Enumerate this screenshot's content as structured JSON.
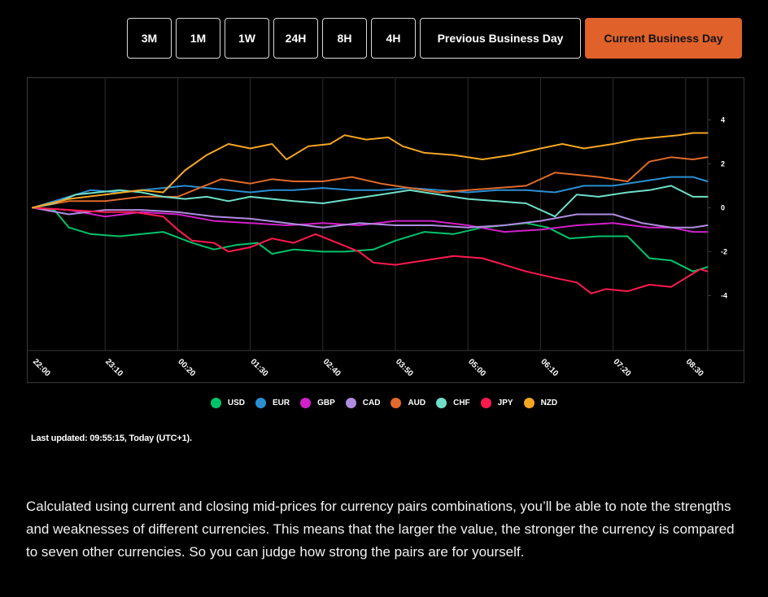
{
  "timeframes": [
    {
      "label": "3M",
      "active": false
    },
    {
      "label": "1M",
      "active": false
    },
    {
      "label": "1W",
      "active": false
    },
    {
      "label": "24H",
      "active": false
    },
    {
      "label": "8H",
      "active": false
    },
    {
      "label": "4H",
      "active": false
    },
    {
      "label": "Previous Business Day",
      "active": false
    },
    {
      "label": "Current Business Day",
      "active": true
    }
  ],
  "last_updated": "Last updated: 09:55:15, Today (UTC+1).",
  "description": "Calculated using current and closing mid-prices for currency pairs combinations, you’ll be able to note the strengths and weaknesses of different currencies. This means that the larger the value, the stronger the currency is compared to seven other currencies. So you can judge how strong the pairs are for yourself.",
  "chart_data": {
    "type": "line",
    "x_ticks": [
      "22:00",
      "23:10",
      "00:20",
      "01:30",
      "02:40",
      "03:50",
      "05:00",
      "06:10",
      "07:20",
      "08:30"
    ],
    "x_range": [
      0,
      9.4
    ],
    "ylim": [
      -6.5,
      5.9
    ],
    "y_ticks": [
      4,
      2,
      0,
      -2,
      -4
    ],
    "y_axis_side": "right",
    "grid": true,
    "legend_position": "bottom",
    "series": [
      {
        "name": "USD",
        "color": "#00c46b",
        "points": [
          [
            0,
            0
          ],
          [
            0.3,
            -0.1
          ],
          [
            0.5,
            -0.9
          ],
          [
            0.8,
            -1.2
          ],
          [
            1.2,
            -1.3
          ],
          [
            1.5,
            -1.2
          ],
          [
            1.8,
            -1.1
          ],
          [
            2.2,
            -1.6
          ],
          [
            2.5,
            -1.9
          ],
          [
            2.8,
            -1.7
          ],
          [
            3.1,
            -1.6
          ],
          [
            3.3,
            -2.1
          ],
          [
            3.6,
            -1.9
          ],
          [
            4.0,
            -2.0
          ],
          [
            4.3,
            -2.0
          ],
          [
            4.7,
            -1.9
          ],
          [
            5.0,
            -1.5
          ],
          [
            5.4,
            -1.1
          ],
          [
            5.8,
            -1.2
          ],
          [
            6.2,
            -0.9
          ],
          [
            6.5,
            -0.8
          ],
          [
            6.8,
            -0.7
          ],
          [
            7.1,
            -0.9
          ],
          [
            7.4,
            -1.4
          ],
          [
            7.8,
            -1.3
          ],
          [
            8.2,
            -1.3
          ],
          [
            8.5,
            -2.3
          ],
          [
            8.8,
            -2.4
          ],
          [
            9.1,
            -2.9
          ],
          [
            9.3,
            -2.7
          ]
        ]
      },
      {
        "name": "EUR",
        "color": "#2b8fd1",
        "points": [
          [
            0,
            0
          ],
          [
            0.4,
            0.4
          ],
          [
            0.8,
            0.8
          ],
          [
            1.2,
            0.7
          ],
          [
            1.5,
            0.8
          ],
          [
            1.8,
            0.9
          ],
          [
            2.1,
            1.0
          ],
          [
            2.4,
            0.9
          ],
          [
            2.7,
            0.8
          ],
          [
            3.0,
            0.7
          ],
          [
            3.3,
            0.8
          ],
          [
            3.6,
            0.8
          ],
          [
            4.0,
            0.9
          ],
          [
            4.4,
            0.8
          ],
          [
            4.8,
            0.8
          ],
          [
            5.2,
            0.9
          ],
          [
            5.6,
            0.8
          ],
          [
            6.0,
            0.7
          ],
          [
            6.4,
            0.8
          ],
          [
            6.8,
            0.8
          ],
          [
            7.2,
            0.7
          ],
          [
            7.6,
            1.0
          ],
          [
            8.0,
            1.0
          ],
          [
            8.4,
            1.2
          ],
          [
            8.8,
            1.4
          ],
          [
            9.1,
            1.4
          ],
          [
            9.3,
            1.2
          ]
        ]
      },
      {
        "name": "GBP",
        "color": "#d020c8",
        "points": [
          [
            0,
            0
          ],
          [
            0.5,
            -0.1
          ],
          [
            1.0,
            -0.4
          ],
          [
            1.5,
            -0.2
          ],
          [
            2.0,
            -0.3
          ],
          [
            2.5,
            -0.6
          ],
          [
            3.0,
            -0.7
          ],
          [
            3.5,
            -0.8
          ],
          [
            4.0,
            -0.7
          ],
          [
            4.5,
            -0.8
          ],
          [
            5.0,
            -0.6
          ],
          [
            5.5,
            -0.6
          ],
          [
            6.0,
            -0.8
          ],
          [
            6.5,
            -1.1
          ],
          [
            7.0,
            -1.0
          ],
          [
            7.5,
            -0.8
          ],
          [
            8.0,
            -0.7
          ],
          [
            8.5,
            -0.9
          ],
          [
            8.8,
            -0.9
          ],
          [
            9.1,
            -1.1
          ],
          [
            9.3,
            -1.1
          ]
        ]
      },
      {
        "name": "CAD",
        "color": "#b08ce0",
        "points": [
          [
            0,
            0
          ],
          [
            0.5,
            -0.3
          ],
          [
            1.0,
            -0.1
          ],
          [
            1.5,
            -0.1
          ],
          [
            2.0,
            -0.2
          ],
          [
            2.5,
            -0.4
          ],
          [
            3.0,
            -0.5
          ],
          [
            3.5,
            -0.7
          ],
          [
            4.0,
            -0.9
          ],
          [
            4.5,
            -0.7
          ],
          [
            5.0,
            -0.8
          ],
          [
            5.5,
            -0.8
          ],
          [
            6.0,
            -0.9
          ],
          [
            6.5,
            -0.8
          ],
          [
            7.0,
            -0.6
          ],
          [
            7.5,
            -0.3
          ],
          [
            8.0,
            -0.3
          ],
          [
            8.4,
            -0.7
          ],
          [
            8.8,
            -0.9
          ],
          [
            9.1,
            -0.9
          ],
          [
            9.3,
            -0.8
          ]
        ]
      },
      {
        "name": "AUD",
        "color": "#e06a2b",
        "points": [
          [
            0,
            0
          ],
          [
            0.5,
            0.3
          ],
          [
            1.0,
            0.3
          ],
          [
            1.5,
            0.5
          ],
          [
            2.0,
            0.5
          ],
          [
            2.3,
            0.9
          ],
          [
            2.6,
            1.3
          ],
          [
            3.0,
            1.1
          ],
          [
            3.3,
            1.3
          ],
          [
            3.6,
            1.2
          ],
          [
            4.0,
            1.2
          ],
          [
            4.4,
            1.4
          ],
          [
            4.8,
            1.1
          ],
          [
            5.2,
            0.9
          ],
          [
            5.6,
            0.7
          ],
          [
            6.0,
            0.8
          ],
          [
            6.4,
            0.9
          ],
          [
            6.8,
            1.0
          ],
          [
            7.2,
            1.6
          ],
          [
            7.5,
            1.5
          ],
          [
            7.8,
            1.4
          ],
          [
            8.2,
            1.2
          ],
          [
            8.5,
            2.1
          ],
          [
            8.8,
            2.3
          ],
          [
            9.1,
            2.2
          ],
          [
            9.3,
            2.3
          ]
        ]
      },
      {
        "name": "CHF",
        "color": "#6ee0c8",
        "points": [
          [
            0,
            0
          ],
          [
            0.3,
            0.2
          ],
          [
            0.6,
            0.6
          ],
          [
            0.9,
            0.7
          ],
          [
            1.2,
            0.8
          ],
          [
            1.5,
            0.7
          ],
          [
            1.8,
            0.5
          ],
          [
            2.1,
            0.4
          ],
          [
            2.4,
            0.5
          ],
          [
            2.7,
            0.3
          ],
          [
            3.0,
            0.5
          ],
          [
            3.3,
            0.4
          ],
          [
            3.6,
            0.3
          ],
          [
            4.0,
            0.2
          ],
          [
            4.4,
            0.4
          ],
          [
            4.8,
            0.6
          ],
          [
            5.2,
            0.8
          ],
          [
            5.6,
            0.6
          ],
          [
            6.0,
            0.4
          ],
          [
            6.4,
            0.3
          ],
          [
            6.8,
            0.2
          ],
          [
            7.2,
            -0.4
          ],
          [
            7.5,
            0.6
          ],
          [
            7.8,
            0.5
          ],
          [
            8.2,
            0.7
          ],
          [
            8.5,
            0.8
          ],
          [
            8.8,
            1.0
          ],
          [
            9.1,
            0.5
          ],
          [
            9.3,
            0.5
          ]
        ]
      },
      {
        "name": "JPY",
        "color": "#ff1a4f",
        "points": [
          [
            0,
            0
          ],
          [
            0.5,
            -0.1
          ],
          [
            1.0,
            -0.2
          ],
          [
            1.4,
            -0.2
          ],
          [
            1.8,
            -0.4
          ],
          [
            2.0,
            -1.0
          ],
          [
            2.2,
            -1.5
          ],
          [
            2.5,
            -1.6
          ],
          [
            2.7,
            -2.0
          ],
          [
            3.0,
            -1.8
          ],
          [
            3.3,
            -1.4
          ],
          [
            3.6,
            -1.6
          ],
          [
            3.9,
            -1.2
          ],
          [
            4.2,
            -1.6
          ],
          [
            4.5,
            -2.0
          ],
          [
            4.7,
            -2.5
          ],
          [
            5.0,
            -2.6
          ],
          [
            5.4,
            -2.4
          ],
          [
            5.8,
            -2.2
          ],
          [
            6.2,
            -2.3
          ],
          [
            6.5,
            -2.6
          ],
          [
            6.8,
            -2.9
          ],
          [
            7.2,
            -3.2
          ],
          [
            7.5,
            -3.4
          ],
          [
            7.7,
            -3.9
          ],
          [
            7.9,
            -3.7
          ],
          [
            8.2,
            -3.8
          ],
          [
            8.5,
            -3.5
          ],
          [
            8.8,
            -3.6
          ],
          [
            9.0,
            -3.2
          ],
          [
            9.2,
            -2.8
          ],
          [
            9.3,
            -2.9
          ]
        ]
      },
      {
        "name": "NZD",
        "color": "#f5a623",
        "points": [
          [
            0,
            0
          ],
          [
            0.5,
            0.4
          ],
          [
            1.0,
            0.6
          ],
          [
            1.5,
            0.8
          ],
          [
            1.8,
            0.7
          ],
          [
            2.1,
            1.7
          ],
          [
            2.4,
            2.4
          ],
          [
            2.7,
            2.9
          ],
          [
            3.0,
            2.7
          ],
          [
            3.3,
            2.9
          ],
          [
            3.5,
            2.2
          ],
          [
            3.8,
            2.8
          ],
          [
            4.1,
            2.9
          ],
          [
            4.3,
            3.3
          ],
          [
            4.6,
            3.1
          ],
          [
            4.9,
            3.2
          ],
          [
            5.1,
            2.8
          ],
          [
            5.4,
            2.5
          ],
          [
            5.8,
            2.4
          ],
          [
            6.2,
            2.2
          ],
          [
            6.6,
            2.4
          ],
          [
            7.0,
            2.7
          ],
          [
            7.3,
            2.9
          ],
          [
            7.6,
            2.7
          ],
          [
            8.0,
            2.9
          ],
          [
            8.3,
            3.1
          ],
          [
            8.6,
            3.2
          ],
          [
            8.9,
            3.3
          ],
          [
            9.1,
            3.4
          ],
          [
            9.3,
            3.4
          ]
        ]
      }
    ]
  }
}
